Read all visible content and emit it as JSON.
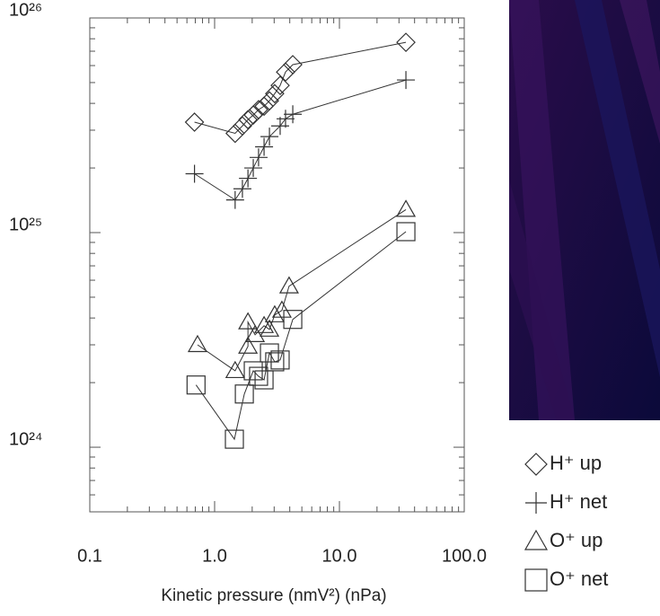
{
  "chart_data": {
    "type": "scatter",
    "xlabel": "Kinetic pressure (nmV²) (nPa)",
    "xscale": "log",
    "yscale": "log",
    "xlim": [
      0.1,
      100
    ],
    "ylim": [
      5e+23,
      1e+26
    ],
    "xticks": [
      0.1,
      {
        "value": 1,
        "label": "1.0"
      },
      {
        "value": 10,
        "label": "10.0"
      },
      {
        "value": 100,
        "label": "100.0"
      }
    ],
    "yticks": [
      {
        "value": 1e+24,
        "label": "10²⁴"
      },
      {
        "value": 1e+25,
        "label": "10²⁵"
      },
      {
        "value": 1e+26,
        "label": "10²⁶"
      }
    ],
    "series": [
      {
        "name": "H⁺ up",
        "marker": "diamond",
        "color": "#333333",
        "x": [
          0.69,
          1.46,
          1.67,
          1.85,
          2.04,
          2.25,
          2.49,
          2.75,
          3.03,
          3.35,
          3.7,
          4.23,
          34.1
        ],
        "values": [
          3.27e+25,
          2.9e+25,
          3.14e+25,
          3.36e+25,
          3.53e+25,
          3.74e+25,
          3.88e+25,
          4.11e+25,
          4.44e+25,
          4.85e+25,
          5.6e+25,
          6.06e+25,
          7.7e+25
        ]
      },
      {
        "name": "H⁺ net",
        "marker": "plus",
        "color": "#333333",
        "x": [
          0.69,
          1.46,
          1.67,
          1.85,
          2.04,
          2.25,
          2.49,
          2.75,
          3.35,
          3.7,
          4.23,
          34.1
        ],
        "values": [
          1.88e+25,
          1.42e+25,
          1.6e+25,
          1.79e+25,
          2e+25,
          2.24e+25,
          2.51e+25,
          2.8e+25,
          3.14e+25,
          3.39e+25,
          3.56e+25,
          5.14e+25
        ]
      },
      {
        "name": "O⁺ up",
        "marker": "triangle",
        "color": "#333333",
        "x": [
          0.73,
          1.46,
          1.85,
          1.85,
          2.11,
          2.49,
          2.75,
          3.03,
          3.46,
          3.95,
          34.1
        ],
        "values": [
          3e+24,
          2.27e+24,
          2.95e+24,
          3.83e+24,
          3.34e+24,
          3.68e+24,
          3.54e+24,
          4.13e+24,
          4.34e+24,
          5.63e+24,
          1.28e+25
        ]
      },
      {
        "name": "O⁺ net",
        "marker": "square",
        "color": "#333333",
        "x": [
          0.71,
          1.44,
          1.73,
          2.04,
          2.25,
          2.49,
          2.75,
          3.03,
          3.35,
          4.23,
          34.1
        ],
        "values": [
          1.95e+24,
          1.09e+24,
          1.77e+24,
          2.27e+24,
          2.14e+24,
          2.06e+24,
          2.75e+24,
          2.5e+24,
          2.55e+24,
          3.94e+24,
          1.01e+25
        ]
      }
    ]
  }
}
